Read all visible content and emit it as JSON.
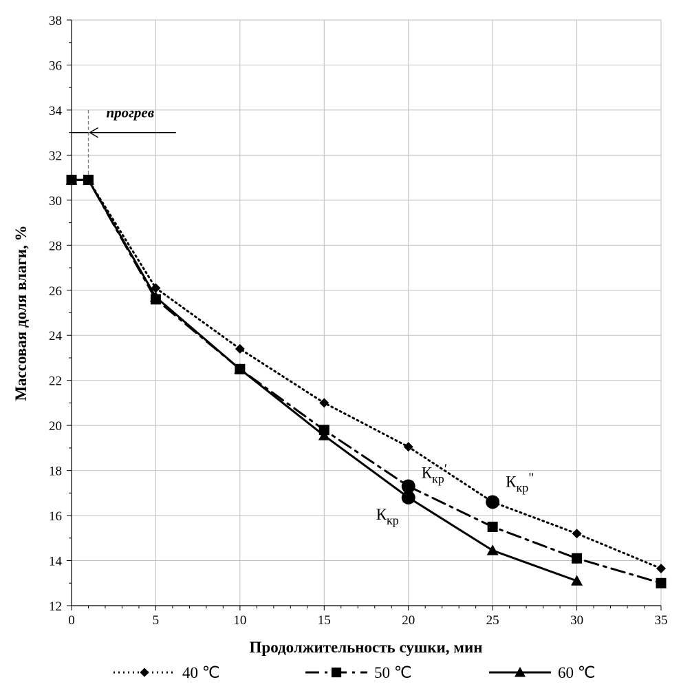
{
  "chart_data": {
    "type": "line",
    "title": "",
    "xlabel": "Продолжительность  сушки, мин",
    "ylabel": "Массовая доля влаги, %",
    "xlim": [
      0,
      35
    ],
    "ylim": [
      12,
      38
    ],
    "xticks": [
      0,
      5,
      10,
      15,
      20,
      25,
      30,
      35
    ],
    "yticks": [
      12,
      14,
      16,
      18,
      20,
      22,
      24,
      26,
      28,
      30,
      32,
      34,
      36,
      38
    ],
    "grid": true,
    "legend_position": "bottom",
    "series": [
      {
        "name": "40  ℃",
        "line_style": "dotted",
        "marker": "diamond",
        "color": "#000000",
        "x": [
          0,
          1,
          5,
          10,
          15,
          20,
          25,
          30,
          35
        ],
        "y": [
          30.9,
          30.9,
          26.1,
          23.4,
          21.0,
          19.05,
          16.6,
          15.2,
          13.65
        ]
      },
      {
        "name": "50  ℃",
        "line_style": "dash-dot",
        "marker": "square",
        "color": "#000000",
        "x": [
          0,
          1,
          5,
          10,
          15,
          20,
          25,
          30,
          35
        ],
        "y": [
          30.9,
          30.9,
          25.6,
          22.5,
          19.8,
          17.3,
          15.5,
          14.1,
          13.0
        ]
      },
      {
        "name": "60  ℃",
        "line_style": "solid",
        "marker": "triangle",
        "color": "#000000",
        "x": [
          0,
          1,
          5,
          10,
          15,
          20,
          25,
          30
        ],
        "y": [
          30.9,
          30.9,
          25.7,
          22.5,
          19.55,
          16.8,
          14.45,
          13.1
        ]
      }
    ],
    "critical_points": [
      {
        "x": 20,
        "y": 16.8,
        "label_main": "К",
        "label_sub": "кр",
        "label_mark": ""
      },
      {
        "x": 20,
        "y": 17.3,
        "label_main": "К",
        "label_sub": "кр",
        "label_mark": "′"
      },
      {
        "x": 25,
        "y": 16.6,
        "label_main": "К",
        "label_sub": "кр",
        "label_mark": "\""
      }
    ],
    "annotations": {
      "heating_label": "прогрев",
      "heating_end_x": 1,
      "heating_arrow_y": 33,
      "heating_arrow_from_x": 6.2
    }
  }
}
